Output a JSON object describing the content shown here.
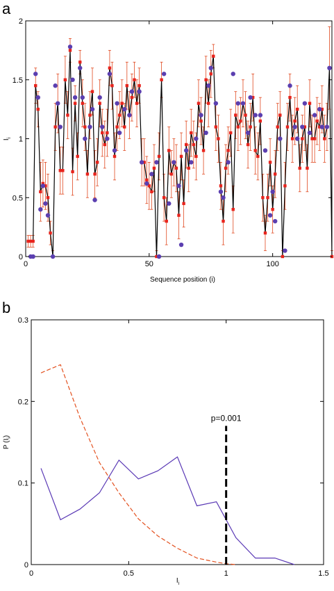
{
  "chart_data": [
    {
      "panel_label": "a",
      "type": "line",
      "xlabel": "Sequence position (i)",
      "ylabel_main": "I",
      "ylabel_sub": "i",
      "xlim": [
        0,
        124
      ],
      "ylim": [
        0,
        2
      ],
      "xticks": [
        0,
        50,
        100
      ],
      "yticks": [
        0,
        0.5,
        1,
        1.5,
        2
      ],
      "grid": false,
      "colors": {
        "line": "#000000",
        "error": "#e0481f",
        "red_marker": "#e8231c",
        "blue_marker": "#5b3fb0"
      },
      "series": [
        {
          "style": "black line with red square markers and orange error bars",
          "x": [
            1,
            2,
            3,
            4,
            5,
            6,
            7,
            8,
            9,
            10,
            11,
            12,
            13,
            14,
            15,
            16,
            17,
            18,
            19,
            20,
            21,
            22,
            23,
            24,
            25,
            26,
            27,
            28,
            29,
            30,
            31,
            32,
            33,
            34,
            35,
            36,
            37,
            38,
            39,
            40,
            41,
            42,
            43,
            44,
            45,
            46,
            47,
            48,
            49,
            50,
            51,
            52,
            53,
            54,
            55,
            56,
            57,
            58,
            59,
            60,
            61,
            62,
            63,
            64,
            65,
            66,
            67,
            68,
            69,
            70,
            71,
            72,
            73,
            74,
            75,
            76,
            77,
            78,
            79,
            80,
            81,
            82,
            83,
            84,
            85,
            86,
            87,
            88,
            89,
            90,
            91,
            92,
            93,
            94,
            95,
            96,
            97,
            98,
            99,
            100,
            101,
            102,
            103,
            104,
            105,
            106,
            107,
            108,
            109,
            110,
            111,
            112,
            113,
            114,
            115,
            116,
            117,
            118,
            119,
            120,
            121,
            122,
            123,
            124
          ],
          "values": [
            0.13,
            0.13,
            0.13,
            1.45,
            1.25,
            0.55,
            0.62,
            0.6,
            0.5,
            0.2,
            0.0,
            1.1,
            1.3,
            0.73,
            0.73,
            1.5,
            1.2,
            1.75,
            0.72,
            1.3,
            0.85,
            1.65,
            1.3,
            1.1,
            0.7,
            1.2,
            1.4,
            0.7,
            0.8,
            1.3,
            1.05,
            0.95,
            1.05,
            1.6,
            1.45,
            0.85,
            1.1,
            1.2,
            1.3,
            1.1,
            1.45,
            1.2,
            1.35,
            1.5,
            1.3,
            1.45,
            0.8,
            0.8,
            0.65,
            0.6,
            0.55,
            0.75,
            0.0,
            0.85,
            1.5,
            0.5,
            0.3,
            0.9,
            0.7,
            0.8,
            0.75,
            0.35,
            0.85,
            0.45,
            0.95,
            0.75,
            1.05,
            0.95,
            0.85,
            1.3,
            1.15,
            0.9,
            1.5,
            1.3,
            1.55,
            1.7,
            1.1,
            1.0,
            0.6,
            0.3,
            0.75,
            0.9,
            1.05,
            0.4,
            1.2,
            1.1,
            1.15,
            1.3,
            1.2,
            0.95,
            1.1,
            1.35,
            0.9,
            0.85,
            1.15,
            0.5,
            0.2,
            0.5,
            0.8,
            0.4,
            0.7,
            1.1,
            1.2,
            0.0,
            0.6,
            1.1,
            1.35,
            1.0,
            1.15,
            1.25,
            0.75,
            1.0,
            1.1,
            0.75,
            1.3,
            1.0,
            1.0,
            1.15,
            1.1,
            1.25,
            1.0,
            1.1,
            1.6,
            0.0
          ],
          "errors": [
            0.05,
            0.05,
            0.05,
            0.15,
            0.15,
            0.25,
            0.2,
            0.2,
            0.2,
            0.1,
            0.05,
            0.2,
            0.25,
            0.2,
            0.2,
            0.2,
            0.2,
            0.1,
            0.2,
            0.15,
            0.2,
            0.1,
            0.2,
            0.2,
            0.2,
            0.2,
            0.2,
            0.2,
            0.2,
            0.2,
            0.2,
            0.2,
            0.2,
            0.15,
            0.2,
            0.2,
            0.2,
            0.2,
            0.2,
            0.2,
            0.2,
            0.2,
            0.2,
            0.15,
            0.2,
            0.15,
            0.2,
            0.2,
            0.2,
            0.2,
            0.15,
            0.2,
            0.05,
            0.2,
            0.15,
            0.2,
            0.2,
            0.2,
            0.2,
            0.2,
            0.2,
            0.2,
            0.2,
            0.2,
            0.2,
            0.2,
            0.2,
            0.2,
            0.2,
            0.2,
            0.2,
            0.2,
            0.2,
            0.2,
            0.2,
            0.1,
            0.2,
            0.2,
            0.2,
            0.2,
            0.2,
            0.2,
            0.2,
            0.2,
            0.2,
            0.2,
            0.2,
            0.2,
            0.2,
            0.2,
            0.2,
            0.2,
            0.2,
            0.2,
            0.2,
            0.2,
            0.15,
            0.2,
            0.2,
            0.2,
            0.2,
            0.2,
            0.2,
            0.05,
            0.2,
            0.2,
            0.2,
            0.2,
            0.2,
            0.2,
            0.2,
            0.2,
            0.2,
            0.2,
            0.2,
            0.2,
            0.2,
            0.2,
            0.2,
            0.2,
            0.2,
            0.2,
            0.35,
            0.05
          ]
        },
        {
          "style": "blue circle markers",
          "x": [
            2,
            3,
            4,
            5,
            6,
            7,
            8,
            9,
            11,
            12,
            13,
            14,
            18,
            19,
            20,
            22,
            23,
            24,
            26,
            27,
            28,
            30,
            31,
            33,
            34,
            36,
            37,
            38,
            40,
            42,
            43,
            46,
            47,
            49,
            51,
            53,
            54,
            56,
            58,
            60,
            62,
            63,
            65,
            67,
            69,
            71,
            73,
            74,
            75,
            77,
            79,
            80,
            82,
            84,
            86,
            88,
            90,
            91,
            93,
            95,
            97,
            99,
            100,
            101,
            103,
            105,
            107,
            109,
            110,
            112,
            113,
            115,
            117,
            119,
            120,
            122,
            123
          ],
          "values": [
            0.0,
            0.0,
            1.55,
            1.35,
            0.4,
            0.6,
            0.45,
            0.35,
            0.0,
            1.45,
            1.3,
            1.1,
            1.78,
            1.5,
            1.35,
            1.6,
            1.35,
            1.0,
            1.1,
            1.25,
            0.48,
            1.35,
            1.1,
            1.0,
            1.55,
            0.9,
            1.3,
            1.05,
            1.25,
            1.2,
            1.4,
            1.4,
            0.8,
            0.62,
            0.7,
            0.8,
            0.0,
            1.55,
            0.45,
            0.8,
            0.6,
            0.1,
            0.9,
            0.8,
            1.0,
            1.2,
            1.05,
            1.45,
            1.6,
            1.3,
            0.55,
            0.5,
            0.8,
            1.55,
            1.3,
            1.3,
            1.05,
            1.35,
            1.2,
            1.2,
            0.9,
            0.35,
            0.55,
            0.3,
            1.0,
            0.05,
            1.45,
            1.1,
            1.0,
            1.1,
            1.3,
            1.05,
            1.2,
            1.25,
            1.1,
            1.1,
            1.6
          ]
        }
      ]
    },
    {
      "panel_label": "b",
      "type": "line",
      "xlabel": "I",
      "xlabel_sub": "i",
      "ylabel": "P (I",
      "ylabel_sub": "i",
      "ylabel_close": ")",
      "xlim": [
        0,
        1.5
      ],
      "ylim": [
        0,
        0.3
      ],
      "xticks": [
        0,
        0.5,
        1,
        1.5
      ],
      "yticks": [
        0,
        0.1,
        0.2,
        0.3
      ],
      "grid": false,
      "annotation": {
        "text": "p=0.001",
        "x": 1.0
      },
      "colors": {
        "purple": "#5a39b5",
        "orange": "#e3501e",
        "dashed": "#000000"
      },
      "series": [
        {
          "style": "solid purple",
          "x": [
            0.05,
            0.15,
            0.25,
            0.35,
            0.45,
            0.55,
            0.65,
            0.75,
            0.85,
            0.95,
            1.05,
            1.15,
            1.25,
            1.35
          ],
          "values": [
            0.118,
            0.055,
            0.068,
            0.088,
            0.128,
            0.105,
            0.115,
            0.132,
            0.072,
            0.077,
            0.033,
            0.008,
            0.008,
            0.0
          ]
        },
        {
          "style": "dashed orange",
          "x": [
            0.05,
            0.15,
            0.25,
            0.35,
            0.45,
            0.55,
            0.65,
            0.75,
            0.85,
            0.95,
            1.0,
            1.05
          ],
          "values": [
            0.235,
            0.245,
            0.18,
            0.125,
            0.088,
            0.056,
            0.035,
            0.02,
            0.008,
            0.003,
            0.001,
            0.0
          ]
        }
      ]
    }
  ]
}
